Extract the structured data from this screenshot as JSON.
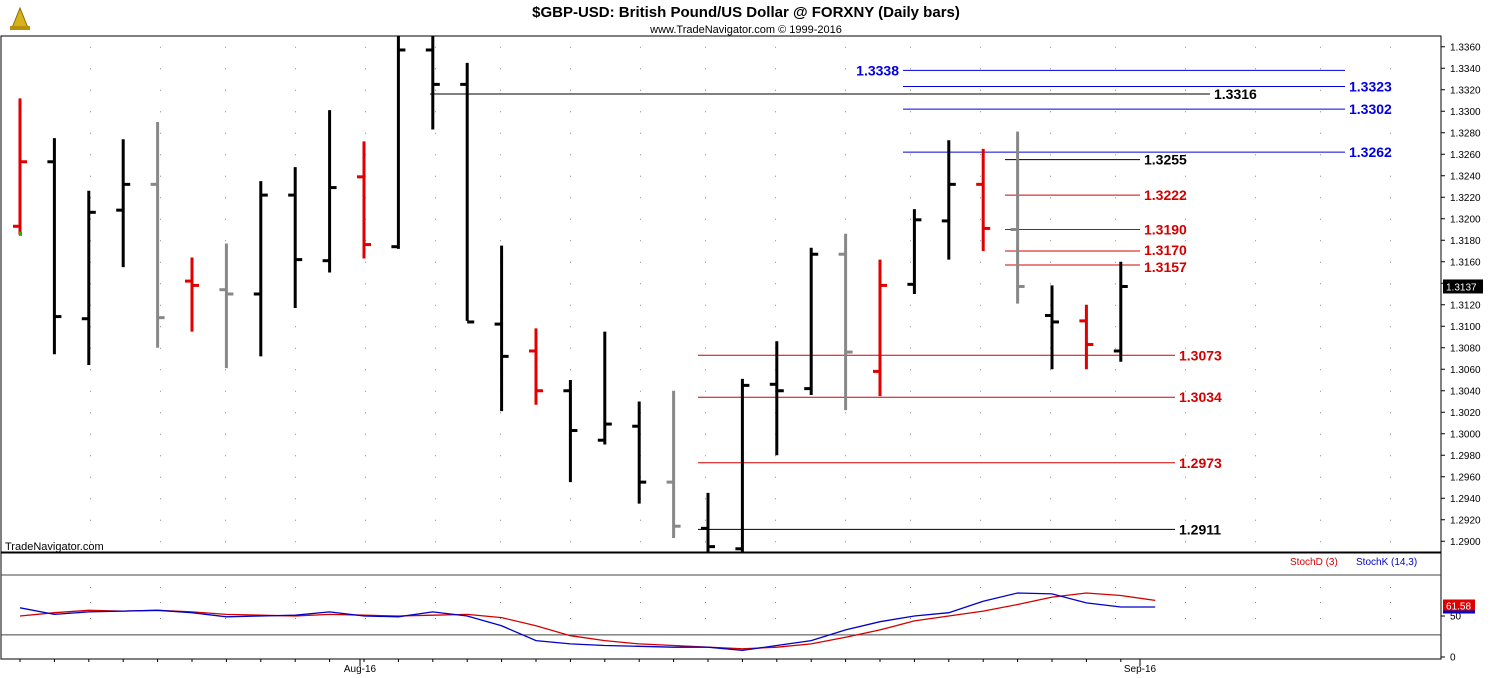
{
  "header": {
    "title": "$GBP-USD:  British Pound/US Dollar @ FORXNY  (Daily bars)",
    "subtitle": "www.TradeNavigator.com © 1999-2016",
    "watermark": "TradeNavigator.com"
  },
  "chart_data": [
    {
      "type": "ohlc",
      "ylim": [
        1.289,
        1.337
      ],
      "y_ticks": [
        "1.3360",
        "1.3340",
        "1.3320",
        "1.3300",
        "1.3280",
        "1.3260",
        "1.3240",
        "1.3220",
        "1.3200",
        "1.3180",
        "1.3160",
        "1.3140",
        "1.3120",
        "1.3100",
        "1.3080",
        "1.3060",
        "1.3040",
        "1.3020",
        "1.3000",
        "1.2980",
        "1.2960",
        "1.2940",
        "1.2920",
        "1.2900"
      ],
      "last_price": "1.3137",
      "x_labels": [
        "Aug-16",
        "Sep-16"
      ],
      "bars": [
        {
          "o": 1.3193,
          "h": 1.3312,
          "l": 1.3185,
          "c": 1.3253,
          "color": "red"
        },
        {
          "o": 1.3253,
          "h": 1.3275,
          "l": 1.3074,
          "c": 1.3109,
          "color": "black"
        },
        {
          "o": 1.3107,
          "h": 1.3226,
          "l": 1.3064,
          "c": 1.3206,
          "color": "black"
        },
        {
          "o": 1.3208,
          "h": 1.3274,
          "l": 1.3155,
          "c": 1.3232,
          "color": "black"
        },
        {
          "o": 1.3232,
          "h": 1.329,
          "l": 1.308,
          "c": 1.3108,
          "color": "gray"
        },
        {
          "o": 1.3142,
          "h": 1.3164,
          "l": 1.3095,
          "c": 1.3138,
          "color": "red"
        },
        {
          "o": 1.3134,
          "h": 1.3177,
          "l": 1.3061,
          "c": 1.313,
          "color": "gray"
        },
        {
          "o": 1.313,
          "h": 1.3235,
          "l": 1.3072,
          "c": 1.3222,
          "color": "black"
        },
        {
          "o": 1.3222,
          "h": 1.3248,
          "l": 1.3117,
          "c": 1.3162,
          "color": "black"
        },
        {
          "o": 1.3161,
          "h": 1.3301,
          "l": 1.315,
          "c": 1.3229,
          "color": "black"
        },
        {
          "o": 1.3239,
          "h": 1.3272,
          "l": 1.3163,
          "c": 1.3176,
          "color": "red"
        },
        {
          "o": 1.3174,
          "h": 1.337,
          "l": 1.3172,
          "c": 1.3357,
          "color": "black"
        },
        {
          "o": 1.3357,
          "h": 1.337,
          "l": 1.3283,
          "c": 1.3325,
          "color": "black"
        },
        {
          "o": 1.3325,
          "h": 1.3345,
          "l": 1.3105,
          "c": 1.3104,
          "color": "black"
        },
        {
          "o": 1.3102,
          "h": 1.3175,
          "l": 1.3021,
          "c": 1.3072,
          "color": "black"
        },
        {
          "o": 1.3077,
          "h": 1.3098,
          "l": 1.3027,
          "c": 1.304,
          "color": "red"
        },
        {
          "o": 1.304,
          "h": 1.305,
          "l": 1.2955,
          "c": 1.3003,
          "color": "black"
        },
        {
          "o": 1.2994,
          "h": 1.3095,
          "l": 1.299,
          "c": 1.3009,
          "color": "black"
        },
        {
          "o": 1.3007,
          "h": 1.303,
          "l": 1.2935,
          "c": 1.2955,
          "color": "black"
        },
        {
          "o": 1.2955,
          "h": 1.304,
          "l": 1.2903,
          "c": 1.2914,
          "color": "gray"
        },
        {
          "o": 1.2912,
          "h": 1.2945,
          "l": 1.289,
          "c": 1.2895,
          "color": "black"
        },
        {
          "o": 1.2893,
          "h": 1.3051,
          "l": 1.289,
          "c": 1.3045,
          "color": "black"
        },
        {
          "o": 1.3046,
          "h": 1.3086,
          "l": 1.298,
          "c": 1.304,
          "color": "black"
        },
        {
          "o": 1.3042,
          "h": 1.3173,
          "l": 1.3036,
          "c": 1.3167,
          "color": "black"
        },
        {
          "o": 1.3167,
          "h": 1.3186,
          "l": 1.3022,
          "c": 1.3076,
          "color": "gray"
        },
        {
          "o": 1.3058,
          "h": 1.3162,
          "l": 1.3035,
          "c": 1.3138,
          "color": "red"
        },
        {
          "o": 1.3139,
          "h": 1.3209,
          "l": 1.313,
          "c": 1.3199,
          "color": "black"
        },
        {
          "o": 1.3198,
          "h": 1.3273,
          "l": 1.3162,
          "c": 1.3232,
          "color": "black"
        },
        {
          "o": 1.3232,
          "h": 1.3265,
          "l": 1.317,
          "c": 1.3191,
          "color": "red"
        },
        {
          "o": 1.319,
          "h": 1.3281,
          "l": 1.3121,
          "c": 1.3137,
          "color": "gray"
        },
        {
          "o": 1.311,
          "h": 1.3138,
          "l": 1.306,
          "c": 1.3104,
          "color": "black"
        },
        {
          "o": 1.3105,
          "h": 1.312,
          "l": 1.306,
          "c": 1.3083,
          "color": "red"
        },
        {
          "o": 1.3077,
          "h": 1.316,
          "l": 1.3067,
          "c": 1.3137,
          "color": "black"
        }
      ],
      "levels": [
        {
          "label": "1.3338",
          "value": 1.3338,
          "color": "#0000e0"
        },
        {
          "label": "1.3323",
          "value": 1.3323,
          "color": "#0000e0"
        },
        {
          "label": "1.3316",
          "value": 1.3316,
          "color": "#000000"
        },
        {
          "label": "1.3302",
          "value": 1.3302,
          "color": "#0000e0"
        },
        {
          "label": "1.3262",
          "value": 1.3262,
          "color": "#0000e0"
        },
        {
          "label": "1.3255",
          "value": 1.3255,
          "color": "#000000"
        },
        {
          "label": "1.3222",
          "value": 1.3222,
          "color": "#d40000"
        },
        {
          "label": "1.3190",
          "value": 1.319,
          "color": "#d40000"
        },
        {
          "label": "1.3170",
          "value": 1.317,
          "color": "#d40000"
        },
        {
          "label": "1.3157",
          "value": 1.3157,
          "color": "#d40000"
        },
        {
          "label": "1.3073",
          "value": 1.3073,
          "color": "#d40000"
        },
        {
          "label": "1.3034",
          "value": 1.3034,
          "color": "#d40000"
        },
        {
          "label": "1.2973",
          "value": 1.2973,
          "color": "#d40000"
        },
        {
          "label": "1.2911",
          "value": 1.2911,
          "color": "#000000"
        }
      ]
    },
    {
      "type": "line",
      "ylim": [
        0,
        100
      ],
      "y_ticks": [
        "50",
        "0"
      ],
      "last_value": "61.58",
      "legend": [
        "StochD (3)",
        "StochK (14,3)"
      ],
      "series": [
        {
          "name": "StochD (3)",
          "color": "#d40000",
          "values": [
            50,
            54,
            57,
            56,
            57,
            55,
            52,
            51,
            50,
            52,
            51,
            50,
            51,
            52,
            48,
            38,
            26,
            20,
            16,
            14,
            12,
            10,
            12,
            16,
            24,
            33,
            44,
            50,
            56,
            64,
            73,
            78,
            75,
            69
          ]
        },
        {
          "name": "StochK (14,3)",
          "color": "#0000c8",
          "values": [
            60,
            52,
            55,
            56,
            57,
            54,
            49,
            50,
            51,
            55,
            50,
            49,
            55,
            50,
            38,
            20,
            16,
            14,
            13,
            12,
            12,
            8,
            14,
            20,
            33,
            43,
            50,
            54,
            68,
            78,
            77,
            66,
            61,
            61
          ]
        }
      ]
    }
  ]
}
